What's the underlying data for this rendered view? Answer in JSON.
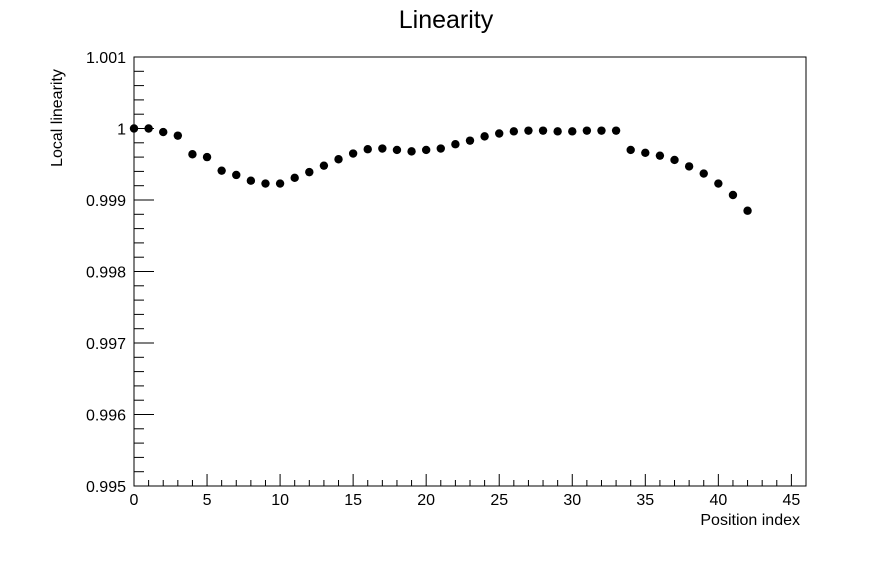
{
  "chart_data": {
    "type": "scatter",
    "title": "Linearity",
    "xlabel": "Position index",
    "ylabel": "Local linearity",
    "xlim": [
      0,
      46
    ],
    "ylim": [
      0.995,
      1.001
    ],
    "xticks": [
      0,
      5,
      10,
      15,
      20,
      25,
      30,
      35,
      40,
      45
    ],
    "xtick_labels": [
      "0",
      "5",
      "10",
      "15",
      "20",
      "25",
      "30",
      "35",
      "40",
      "45"
    ],
    "yticks": [
      0.995,
      0.996,
      0.997,
      0.998,
      0.999,
      1.0,
      1.001
    ],
    "ytick_labels": [
      "0.995",
      "0.996",
      "0.997",
      "0.998",
      "0.999",
      "1",
      "1.001"
    ],
    "grid": false,
    "marker_color": "#000000",
    "x": [
      0,
      1,
      2,
      3,
      4,
      5,
      6,
      7,
      8,
      9,
      10,
      11,
      12,
      13,
      14,
      15,
      16,
      17,
      18,
      19,
      20,
      21,
      22,
      23,
      24,
      25,
      26,
      27,
      28,
      29,
      30,
      31,
      32,
      33,
      34,
      35,
      36,
      37,
      38,
      39,
      40,
      41,
      42
    ],
    "y": [
      1.0,
      1.0,
      0.99995,
      0.9999,
      0.99964,
      0.9996,
      0.99941,
      0.99935,
      0.99927,
      0.99923,
      0.99923,
      0.99931,
      0.99939,
      0.99948,
      0.99957,
      0.99965,
      0.99971,
      0.99972,
      0.9997,
      0.99968,
      0.9997,
      0.99972,
      0.99978,
      0.99983,
      0.99989,
      0.99993,
      0.99996,
      0.99997,
      0.99997,
      0.99996,
      0.99996,
      0.99997,
      0.99997,
      0.99997,
      0.9997,
      0.99966,
      0.99962,
      0.99956,
      0.99947,
      0.99937,
      0.99923,
      0.99907,
      0.99885
    ]
  }
}
